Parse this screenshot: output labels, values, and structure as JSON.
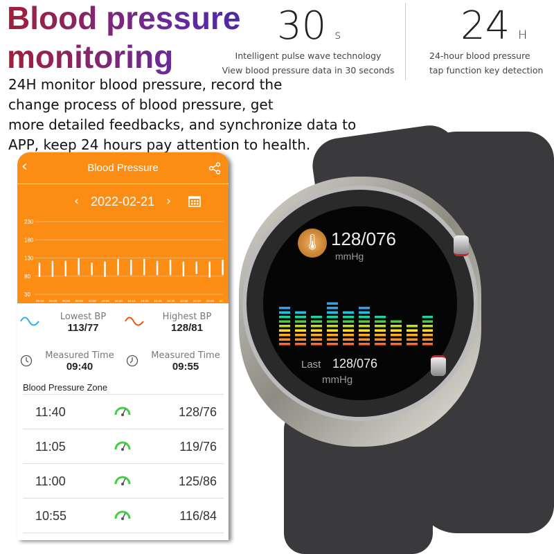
{
  "headline": {
    "line1": "Blood pressure",
    "line2": "monitoring"
  },
  "feature1": {
    "value": "30",
    "unit": "s",
    "line1": "Intelligent pulse wave technology",
    "line2": "View blood pressure data in 30 seconds"
  },
  "feature2": {
    "value": "24",
    "unit": "H",
    "line1": "24-hour blood pressure",
    "line2": "tap function key detection"
  },
  "description": [
    "24H monitor blood pressure, record the",
    "change process of blood pressure, get",
    "more detailed feedbacks, and synchronize data to",
    "APP, keep 24 hours pay attention to health."
  ],
  "app": {
    "title": "Blood Pressure",
    "date": "2022-02-21",
    "accent": "#fb8c14",
    "icons": {
      "back": "chevron-left-icon",
      "share": "share-icon",
      "calendar": "calendar-icon"
    },
    "chart_data": {
      "type": "range-bar",
      "yticks": [
        230,
        180,
        130,
        80,
        30
      ],
      "ylim": [
        30,
        230
      ],
      "categories": [
        "09:40",
        "09:45",
        "09:50",
        "09:55",
        "10:00",
        "10:05",
        "10:10",
        "10:15",
        "10:20",
        "10:25",
        "10:30",
        "10:35",
        "10:40",
        "10:45",
        "10:"
      ],
      "high": [
        115,
        120,
        120,
        127,
        115,
        118,
        125,
        123,
        125,
        120,
        123,
        118,
        118,
        118,
        123
      ],
      "low": [
        80,
        80,
        82,
        85,
        85,
        80,
        85,
        85,
        85,
        85,
        85,
        82,
        88,
        78,
        85
      ]
    },
    "lowest": {
      "label": "Lowest BP",
      "value": "113/77"
    },
    "highest": {
      "label": "Highest BP",
      "value": "128/81"
    },
    "time1": {
      "label": "Measured Time",
      "value": "09:40"
    },
    "time2": {
      "label": "Measured Time",
      "value": "09:55"
    },
    "zone_title": "Blood Pressure Zone",
    "records": [
      {
        "time": "11:40",
        "value": "128/76"
      },
      {
        "time": "11:05",
        "value": "119/76"
      },
      {
        "time": "11:00",
        "value": "125/86"
      },
      {
        "time": "10:55",
        "value": "116/84"
      }
    ]
  },
  "watch": {
    "reading": "128/076",
    "unit": "mmHg",
    "last_label": "Last",
    "last_reading": "128/076",
    "last_unit": "mmHg"
  }
}
